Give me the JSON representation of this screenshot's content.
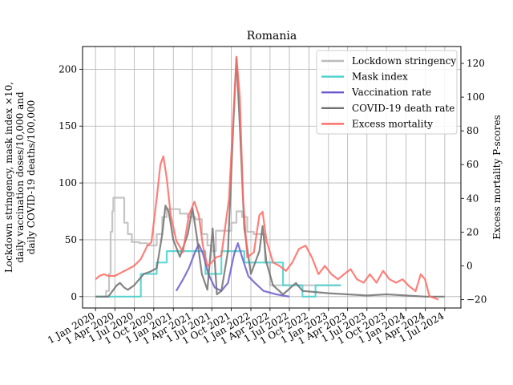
{
  "chart_data": {
    "type": "line",
    "title": "Romania",
    "ylabel_left_lines": [
      "Lockdown stringency, mask index ×10,",
      "daily vaccination doses/10,000 and",
      "daily COVID-19 deaths/100,000"
    ],
    "ylabel_right": "Excess mortality P-scores",
    "x_ticks": [
      "1 Jan 2020",
      "1 Apr 2020",
      "1 Jul 2020",
      "1 Oct 2020",
      "1 Jan 2021",
      "1 Apr 2021",
      "1 Jul 2021",
      "1 Oct 2021",
      "1 Jan 2022",
      "1 Apr 2022",
      "1 Jul 2022",
      "1 Oct 2022",
      "1 Jan 2023",
      "1 Apr 2023",
      "1 Jul 2023",
      "1 Oct 2023",
      "1 Jan 2024",
      "1 Apr 2024",
      "1 Jul 2024"
    ],
    "x_tick_dates": [
      "2020-01-01",
      "2020-04-01",
      "2020-07-01",
      "2020-10-01",
      "2021-01-01",
      "2021-04-01",
      "2021-07-01",
      "2021-10-01",
      "2022-01-01",
      "2022-04-01",
      "2022-07-01",
      "2022-10-01",
      "2023-01-01",
      "2023-04-01",
      "2023-07-01",
      "2023-10-01",
      "2024-01-01",
      "2024-04-01",
      "2024-07-01"
    ],
    "xlim": [
      "2019-11-01",
      "2024-09-15"
    ],
    "ylim_left": [
      -10,
      220
    ],
    "ylim_right": [
      -25,
      130
    ],
    "yticks_left": [
      0,
      50,
      100,
      150,
      200
    ],
    "yticks_right": [
      -20,
      0,
      20,
      40,
      60,
      80,
      100,
      120
    ],
    "grid": true,
    "legend_position": "top-right",
    "series": [
      {
        "name": "Lockdown stringency",
        "axis": "left",
        "color": "#bbbbbb",
        "step": true,
        "points": [
          [
            "2020-01-01",
            0
          ],
          [
            "2020-02-20",
            5
          ],
          [
            "2020-03-05",
            20
          ],
          [
            "2020-03-12",
            57
          ],
          [
            "2020-03-20",
            75
          ],
          [
            "2020-03-25",
            87
          ],
          [
            "2020-05-15",
            65
          ],
          [
            "2020-06-01",
            55
          ],
          [
            "2020-06-20",
            48
          ],
          [
            "2020-07-25",
            47
          ],
          [
            "2020-09-01",
            45
          ],
          [
            "2020-10-15",
            55
          ],
          [
            "2020-11-10",
            70
          ],
          [
            "2020-12-01",
            77
          ],
          [
            "2021-02-01",
            73
          ],
          [
            "2021-03-10",
            70
          ],
          [
            "2021-04-15",
            68
          ],
          [
            "2021-05-15",
            55
          ],
          [
            "2021-06-10",
            45
          ],
          [
            "2021-07-01",
            40
          ],
          [
            "2021-07-20",
            58
          ],
          [
            "2021-10-01",
            65
          ],
          [
            "2021-10-25",
            75
          ],
          [
            "2021-11-20",
            70
          ],
          [
            "2021-12-15",
            57
          ],
          [
            "2022-01-15",
            55
          ],
          [
            "2022-03-08",
            30
          ],
          [
            "2022-04-01",
            10
          ],
          [
            "2022-06-01",
            10
          ],
          [
            "2022-09-01",
            10
          ],
          [
            "2022-12-15",
            10
          ],
          [
            "2023-03-01",
            10
          ]
        ]
      },
      {
        "name": "Mask index",
        "axis": "left",
        "color": "#48d1cc",
        "step": true,
        "points": [
          [
            "2020-01-01",
            0
          ],
          [
            "2020-05-15",
            0
          ],
          [
            "2020-08-01",
            20
          ],
          [
            "2020-10-15",
            30
          ],
          [
            "2020-12-01",
            40
          ],
          [
            "2021-04-01",
            40
          ],
          [
            "2021-06-01",
            20
          ],
          [
            "2021-08-15",
            40
          ],
          [
            "2021-10-01",
            40
          ],
          [
            "2021-12-01",
            30
          ],
          [
            "2022-04-01",
            30
          ],
          [
            "2022-06-01",
            10
          ],
          [
            "2022-09-01",
            0
          ],
          [
            "2022-11-01",
            10
          ],
          [
            "2023-03-01",
            10
          ]
        ]
      },
      {
        "name": "Vaccination rate",
        "axis": "left",
        "color": "#6a5acd",
        "step": false,
        "points": [
          [
            "2021-01-15",
            5
          ],
          [
            "2021-02-15",
            15
          ],
          [
            "2021-03-15",
            25
          ],
          [
            "2021-04-15",
            40
          ],
          [
            "2021-05-01",
            46
          ],
          [
            "2021-05-20",
            38
          ],
          [
            "2021-06-15",
            20
          ],
          [
            "2021-07-15",
            8
          ],
          [
            "2021-08-15",
            5
          ],
          [
            "2021-09-15",
            12
          ],
          [
            "2021-10-15",
            38
          ],
          [
            "2021-11-01",
            47
          ],
          [
            "2021-11-20",
            35
          ],
          [
            "2021-12-20",
            18
          ],
          [
            "2022-01-20",
            12
          ],
          [
            "2022-03-01",
            5
          ],
          [
            "2022-05-01",
            2
          ],
          [
            "2022-07-01",
            0
          ]
        ]
      },
      {
        "name": "COVID-19 death rate",
        "axis": "left",
        "color": "#707070",
        "step": false,
        "points": [
          [
            "2020-01-01",
            0
          ],
          [
            "2020-03-01",
            0
          ],
          [
            "2020-04-10",
            10
          ],
          [
            "2020-04-25",
            12
          ],
          [
            "2020-05-15",
            8
          ],
          [
            "2020-06-01",
            6
          ],
          [
            "2020-07-01",
            10
          ],
          [
            "2020-08-15",
            20
          ],
          [
            "2020-09-15",
            22
          ],
          [
            "2020-10-15",
            25
          ],
          [
            "2020-11-10",
            55
          ],
          [
            "2020-11-25",
            80
          ],
          [
            "2020-12-10",
            75
          ],
          [
            "2021-01-01",
            50
          ],
          [
            "2021-02-01",
            35
          ],
          [
            "2021-03-10",
            55
          ],
          [
            "2021-04-01",
            78
          ],
          [
            "2021-04-20",
            55
          ],
          [
            "2021-05-15",
            20
          ],
          [
            "2021-06-10",
            6
          ],
          [
            "2021-07-05",
            60
          ],
          [
            "2021-07-25",
            2
          ],
          [
            "2021-08-15",
            5
          ],
          [
            "2021-09-15",
            40
          ],
          [
            "2021-10-10",
            150
          ],
          [
            "2021-10-25",
            210
          ],
          [
            "2021-11-10",
            150
          ],
          [
            "2021-12-01",
            60
          ],
          [
            "2022-01-01",
            20
          ],
          [
            "2022-02-10",
            40
          ],
          [
            "2022-02-25",
            62
          ],
          [
            "2022-03-15",
            30
          ],
          [
            "2022-04-15",
            10
          ],
          [
            "2022-06-01",
            2
          ],
          [
            "2022-08-01",
            12
          ],
          [
            "2022-09-01",
            5
          ],
          [
            "2023-01-01",
            3
          ],
          [
            "2023-04-01",
            2
          ],
          [
            "2023-07-01",
            1
          ],
          [
            "2023-10-01",
            2
          ],
          [
            "2024-01-01",
            1
          ],
          [
            "2024-04-01",
            0
          ],
          [
            "2024-07-01",
            0
          ]
        ]
      },
      {
        "name": "Excess mortality",
        "axis": "right",
        "color": "#ff6961",
        "step": false,
        "points": [
          [
            "2020-01-01",
            -8
          ],
          [
            "2020-01-20",
            -6
          ],
          [
            "2020-02-10",
            -5
          ],
          [
            "2020-03-01",
            -6
          ],
          [
            "2020-04-01",
            -6
          ],
          [
            "2020-05-01",
            -4
          ],
          [
            "2020-06-01",
            -2
          ],
          [
            "2020-07-01",
            0
          ],
          [
            "2020-08-01",
            4
          ],
          [
            "2020-09-01",
            12
          ],
          [
            "2020-09-20",
            14
          ],
          [
            "2020-10-15",
            40
          ],
          [
            "2020-11-01",
            60
          ],
          [
            "2020-11-15",
            65
          ],
          [
            "2020-12-01",
            52
          ],
          [
            "2020-12-20",
            30
          ],
          [
            "2021-01-15",
            15
          ],
          [
            "2021-02-15",
            8
          ],
          [
            "2021-03-15",
            30
          ],
          [
            "2021-04-10",
            38
          ],
          [
            "2021-05-01",
            30
          ],
          [
            "2021-05-20",
            12
          ],
          [
            "2021-06-10",
            0
          ],
          [
            "2021-07-01",
            2
          ],
          [
            "2021-07-20",
            5
          ],
          [
            "2021-08-15",
            6
          ],
          [
            "2021-09-20",
            40
          ],
          [
            "2021-10-25",
            124
          ],
          [
            "2021-11-10",
            100
          ],
          [
            "2021-11-25",
            40
          ],
          [
            "2021-12-15",
            5
          ],
          [
            "2022-01-15",
            8
          ],
          [
            "2022-02-10",
            30
          ],
          [
            "2022-02-25",
            32
          ],
          [
            "2022-03-15",
            15
          ],
          [
            "2022-04-15",
            2
          ],
          [
            "2022-05-15",
            0
          ],
          [
            "2022-06-15",
            -3
          ],
          [
            "2022-07-15",
            2
          ],
          [
            "2022-08-15",
            10
          ],
          [
            "2022-09-15",
            12
          ],
          [
            "2022-10-15",
            5
          ],
          [
            "2022-11-15",
            -5
          ],
          [
            "2022-12-15",
            0
          ],
          [
            "2023-01-15",
            -5
          ],
          [
            "2023-02-15",
            -8
          ],
          [
            "2023-03-15",
            -5
          ],
          [
            "2023-04-15",
            -2
          ],
          [
            "2023-05-15",
            -8
          ],
          [
            "2023-06-15",
            -10
          ],
          [
            "2023-07-15",
            -5
          ],
          [
            "2023-08-15",
            -10
          ],
          [
            "2023-09-15",
            -3
          ],
          [
            "2023-10-15",
            -8
          ],
          [
            "2023-11-15",
            -10
          ],
          [
            "2023-12-15",
            -8
          ],
          [
            "2024-01-15",
            -12
          ],
          [
            "2024-02-15",
            -15
          ],
          [
            "2024-03-10",
            -5
          ],
          [
            "2024-03-30",
            -8
          ],
          [
            "2024-04-20",
            -18
          ],
          [
            "2024-06-01",
            -20
          ]
        ]
      }
    ]
  }
}
